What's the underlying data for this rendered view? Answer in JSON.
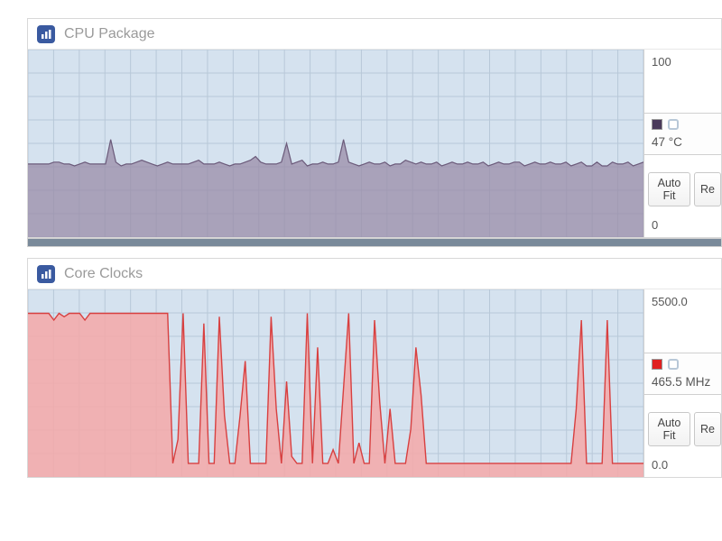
{
  "layout": {
    "grid_color": "#b8c8d8",
    "chart_background": "#d5e2ef",
    "panel_border": "#d8d8d8",
    "separator_color": "#7a8a9a",
    "title_color": "#9a9a9a",
    "icon_bg": "#3a5aa0",
    "grid_rows": 8,
    "grid_cols": 24,
    "fontsize_title": 16,
    "fontsize_side": 13
  },
  "panels": [
    {
      "title": "CPU Package",
      "series_color": "#6b5a7a",
      "fill_color": "#9a8ca8",
      "fill_opacity": 0.75,
      "line_width": 1.2,
      "ylim": [
        0,
        100
      ],
      "max_label": "100",
      "min_label": "0",
      "swatch_color": "#4a3a5a",
      "value_label": "47 °C",
      "buttons": [
        "Auto Fit",
        "Re"
      ],
      "values": [
        39,
        39,
        39,
        39,
        39,
        40,
        40,
        39,
        39,
        38,
        39,
        40,
        39,
        39,
        39,
        39,
        52,
        40,
        38,
        39,
        39,
        40,
        41,
        40,
        39,
        38,
        39,
        40,
        39,
        39,
        39,
        39,
        40,
        41,
        39,
        39,
        39,
        40,
        39,
        38,
        39,
        39,
        40,
        41,
        43,
        40,
        39,
        39,
        39,
        40,
        50,
        39,
        40,
        41,
        38,
        39,
        39,
        40,
        39,
        39,
        40,
        52,
        40,
        39,
        38,
        39,
        40,
        39,
        39,
        40,
        38,
        39,
        39,
        41,
        40,
        39,
        40,
        39,
        39,
        40,
        38,
        39,
        40,
        39,
        39,
        40,
        39,
        39,
        40,
        38,
        39,
        40,
        39,
        39,
        40,
        40,
        38,
        39,
        40,
        39,
        39,
        40,
        39,
        39,
        40,
        38,
        39,
        40,
        38,
        38,
        40,
        38,
        38,
        40,
        39,
        39,
        40,
        38,
        39,
        40
      ]
    },
    {
      "title": "Core Clocks",
      "series_color": "#d84040",
      "fill_color": "#f4a8a8",
      "fill_opacity": 0.85,
      "line_width": 1.4,
      "ylim": [
        0,
        5500
      ],
      "max_label": "5500.0",
      "min_label": "0.0",
      "swatch_color": "#e02020",
      "value_label": "465.5 MHz",
      "buttons": [
        "Auto Fit",
        "Re"
      ],
      "values": [
        4800,
        4800,
        4800,
        4800,
        4800,
        4600,
        4800,
        4700,
        4800,
        4800,
        4800,
        4600,
        4800,
        4800,
        4800,
        4800,
        4800,
        4800,
        4800,
        4800,
        4800,
        4800,
        4800,
        4800,
        4800,
        4800,
        4800,
        4800,
        400,
        1100,
        4800,
        400,
        400,
        400,
        4500,
        400,
        400,
        4700,
        1800,
        400,
        400,
        1800,
        3400,
        400,
        400,
        400,
        400,
        4700,
        2000,
        400,
        2800,
        600,
        400,
        400,
        4800,
        400,
        3800,
        400,
        400,
        800,
        400,
        2600,
        4800,
        400,
        1000,
        400,
        400,
        4600,
        2200,
        400,
        2000,
        400,
        400,
        400,
        1400,
        3800,
        2400,
        400,
        400,
        400,
        400,
        400,
        400,
        400,
        400,
        400,
        400,
        400,
        400,
        400,
        400,
        400,
        400,
        400,
        400,
        400,
        400,
        400,
        400,
        400,
        400,
        400,
        400,
        400,
        400,
        400,
        2000,
        4600,
        400,
        400,
        400,
        400,
        4600,
        400,
        400,
        400,
        400,
        400,
        400,
        400
      ]
    }
  ]
}
